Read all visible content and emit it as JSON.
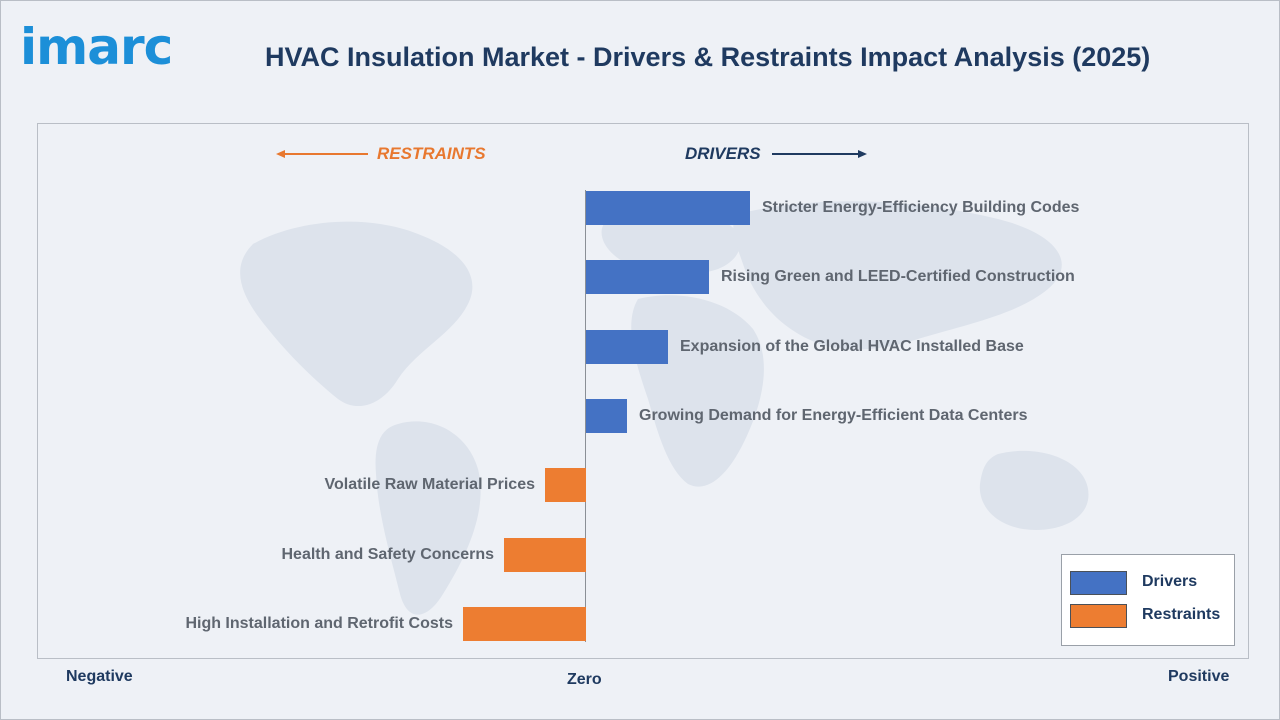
{
  "header": {
    "logo_text": "imarc",
    "title": "HVAC Insulation Market - Drivers & Restraints Impact Analysis (2025)"
  },
  "direction_labels": {
    "restraints": "RESTRAINTS",
    "drivers": "DRIVERS"
  },
  "axis_labels": {
    "negative": "Negative",
    "zero": "Zero",
    "positive": "Positive"
  },
  "legend": {
    "drivers": "Drivers",
    "restraints": "Restraints"
  },
  "colors": {
    "drivers": "#4472c4",
    "restraints": "#ed7d31",
    "restraints_arrow": "#e8782f",
    "drivers_arrow": "#1f3a60"
  },
  "chart_data": {
    "type": "bar",
    "orientation": "horizontal",
    "title": "HVAC Insulation Market - Drivers & Restraints Impact Analysis (2025)",
    "categories": [
      "Stricter Energy-Efficiency Building Codes",
      "Rising Green and LEED-Certified Construction",
      "Expansion of the Global HVAC Installed Base",
      "Growing Demand for Energy-Efficient Data Centers",
      "Volatile Raw Material Prices",
      "Health and Safety Concerns",
      "High Installation and Retrofit Costs"
    ],
    "series": [
      {
        "name": "Drivers",
        "values": [
          4,
          3,
          2,
          1,
          0,
          0,
          0
        ]
      },
      {
        "name": "Restraints",
        "values": [
          0,
          0,
          0,
          0,
          -1,
          -2,
          -3
        ]
      }
    ],
    "xlim": [
      -3,
      4
    ],
    "legend_position": "bottom-right",
    "grid": false
  }
}
